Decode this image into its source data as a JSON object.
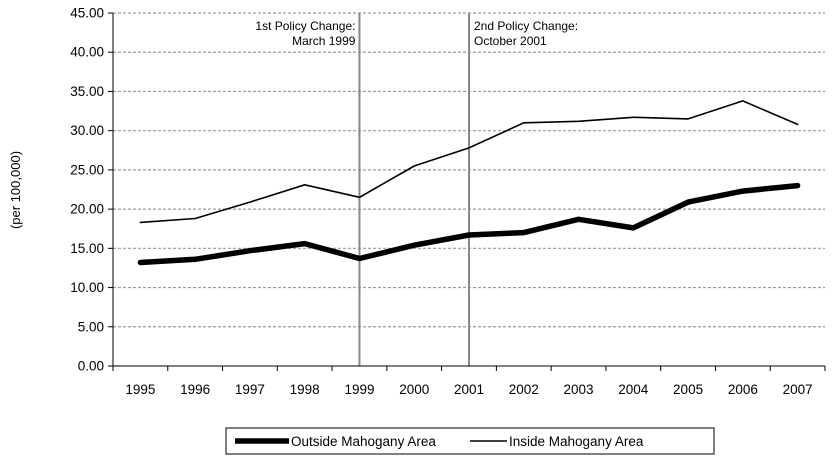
{
  "chart_data": {
    "type": "line",
    "title": "",
    "xlabel": "",
    "ylabel": "(per 100,000)",
    "categories": [
      "1995",
      "1996",
      "1997",
      "1998",
      "1999",
      "2000",
      "2001",
      "2002",
      "2003",
      "2004",
      "2005",
      "2006",
      "2007"
    ],
    "ylim": [
      0,
      45
    ],
    "ytick_step": 5,
    "ytick_labels": [
      "0.00",
      "5.00",
      "10.00",
      "15.00",
      "20.00",
      "25.00",
      "30.00",
      "35.00",
      "40.00",
      "45.00"
    ],
    "grid": "horizontal, dashed",
    "legend_position": "bottom",
    "series": [
      {
        "name": "Outside Mahogany Area",
        "values": [
          13.2,
          13.6,
          14.7,
          15.6,
          13.7,
          15.4,
          16.7,
          17.0,
          18.7,
          17.6,
          20.9,
          22.3,
          23.0
        ],
        "color": "#000000",
        "weight": "thick"
      },
      {
        "name": "Inside Mahogany Area",
        "values": [
          18.3,
          18.8,
          20.9,
          23.1,
          21.5,
          25.5,
          27.8,
          31.0,
          31.2,
          31.7,
          31.5,
          33.8,
          30.8
        ],
        "color": "#000000",
        "weight": "thin"
      }
    ],
    "annotations": [
      {
        "at": "1999",
        "line1": "1st Policy Change:",
        "line2": "March 1999"
      },
      {
        "at": "2001",
        "line1": "2nd Policy Change:",
        "line2": "October 2001"
      }
    ]
  }
}
